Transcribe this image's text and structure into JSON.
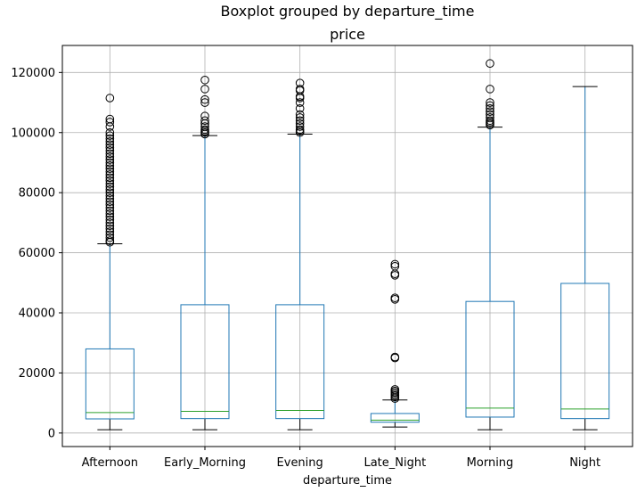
{
  "chart_data": {
    "type": "boxplot",
    "suptitle": "Boxplot grouped by departure_time",
    "title": "price",
    "xlabel": "departure_time",
    "ylabel": "",
    "ylim": [
      -4500,
      129000
    ],
    "yticks": [
      0,
      20000,
      40000,
      60000,
      80000,
      100000,
      120000
    ],
    "ytick_labels": [
      "0",
      "20000",
      "40000",
      "60000",
      "80000",
      "100000",
      "120000"
    ],
    "grid": true,
    "categories": [
      "Afternoon",
      "Early_Morning",
      "Evening",
      "Late_Night",
      "Morning",
      "Night"
    ],
    "boxes": [
      {
        "category": "Afternoon",
        "whisker_low": 1100,
        "q1": 4700,
        "median": 6800,
        "q3": 28000,
        "whisker_high": 63000,
        "outliers": [
          63500,
          64000,
          65000,
          66000,
          67000,
          68000,
          69000,
          70000,
          71000,
          72000,
          73000,
          74000,
          75000,
          76000,
          77000,
          78000,
          79000,
          80000,
          81000,
          82000,
          83000,
          84000,
          85000,
          86000,
          87000,
          88000,
          89000,
          90000,
          91000,
          92000,
          93000,
          94000,
          95000,
          96000,
          97000,
          98000,
          99000,
          100000,
          102000,
          103500,
          104500,
          111500
        ]
      },
      {
        "category": "Early_Morning",
        "whisker_low": 1100,
        "q1": 4800,
        "median": 7200,
        "q3": 42700,
        "whisker_high": 99000,
        "outliers": [
          99500,
          100000,
          100500,
          101000,
          102000,
          103000,
          104000,
          105500,
          110000,
          111000,
          114500,
          117500
        ]
      },
      {
        "category": "Evening",
        "whisker_low": 1100,
        "q1": 4800,
        "median": 7500,
        "q3": 42700,
        "whisker_high": 99500,
        "outliers": [
          100000,
          100500,
          101000,
          102000,
          103000,
          104000,
          105000,
          106000,
          108000,
          110000,
          111500,
          112000,
          114000,
          114500,
          116500
        ]
      },
      {
        "category": "Late_Night",
        "whisker_low": 2000,
        "q1": 3600,
        "median": 4300,
        "q3": 6500,
        "whisker_high": 11000,
        "outliers": [
          11500,
          12000,
          12500,
          13000,
          13500,
          14000,
          14500,
          25000,
          25300,
          44500,
          45000,
          52500,
          53000,
          55500,
          56200
        ]
      },
      {
        "category": "Morning",
        "whisker_low": 1100,
        "q1": 5300,
        "median": 8300,
        "q3": 43800,
        "whisker_high": 101800,
        "outliers": [
          102500,
          103000,
          103500,
          104000,
          105000,
          106000,
          107000,
          108000,
          109000,
          110000,
          114500,
          123000
        ]
      },
      {
        "category": "Night",
        "whisker_low": 1100,
        "q1": 4800,
        "median": 8000,
        "q3": 49800,
        "whisker_high": 115300,
        "outliers": []
      }
    ],
    "colors": {
      "box": "#1f77b4",
      "median": "#2ca02c",
      "grid": "#b0b0b0",
      "outlier": "#000000"
    }
  }
}
